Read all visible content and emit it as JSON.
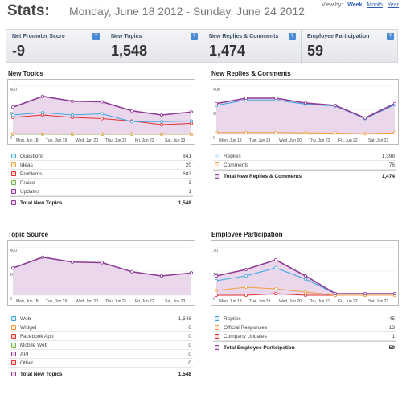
{
  "header": {
    "title": "Stats:",
    "date_range": "Monday, June 18 2012 - Sunday, June 24 2012",
    "view_by_label": "View by:",
    "view_week": "Week",
    "view_month": "Month",
    "view_year": "Year"
  },
  "kpis": [
    {
      "label": "Net Promoter Score",
      "value": "-9"
    },
    {
      "label": "New Topics",
      "value": "1,548"
    },
    {
      "label": "New Replies & Comments",
      "value": "1,474"
    },
    {
      "label": "Employee Participation",
      "value": "59"
    }
  ],
  "help_icon_text": "?",
  "colors": {
    "purple": "#8e3a96",
    "blue": "#3fa8dc",
    "red": "#e03030",
    "orange": "#f0a040",
    "green": "#6fb04a",
    "steel": "#4a78b8",
    "fill": "#ead7ec"
  },
  "sections": {
    "new_topics": {
      "title": "New Topics",
      "legend": [
        {
          "name": "Questions",
          "value": "841",
          "color": "#3fa8dc"
        },
        {
          "name": "Ideas",
          "value": "20",
          "color": "#f0a040"
        },
        {
          "name": "Problems",
          "value": "683",
          "color": "#e03030"
        },
        {
          "name": "Praise",
          "value": "3",
          "color": "#6fb04a"
        },
        {
          "name": "Updates",
          "value": "1",
          "color": "#8e3a96"
        }
      ],
      "total": {
        "name": "Total New Topics",
        "value": "1,548"
      }
    },
    "replies": {
      "title": "New Replies & Comments",
      "legend": [
        {
          "name": "Replies",
          "value": "1,398",
          "color": "#3fa8dc"
        },
        {
          "name": "Comments",
          "value": "76",
          "color": "#f0a040"
        }
      ],
      "total": {
        "name": "Total New Replies & Comments",
        "value": "1,474"
      }
    },
    "topic_source": {
      "title": "Topic Source",
      "legend": [
        {
          "name": "Web",
          "value": "1,548",
          "color": "#3fa8dc"
        },
        {
          "name": "Widget",
          "value": "0",
          "color": "#f0a040"
        },
        {
          "name": "Facebook App",
          "value": "0",
          "color": "#e03030"
        },
        {
          "name": "Mobile Web",
          "value": "0",
          "color": "#6fb04a"
        },
        {
          "name": "API",
          "value": "0",
          "color": "#8e3a96"
        },
        {
          "name": "Other",
          "value": "0",
          "color": "#e03030"
        }
      ],
      "total": {
        "name": "Total New Topics",
        "value": "1,548"
      }
    },
    "employee": {
      "title": "Employee Participation",
      "legend": [
        {
          "name": "Replies",
          "value": "45",
          "color": "#3fa8dc"
        },
        {
          "name": "Official Responses",
          "value": "13",
          "color": "#f0a040"
        },
        {
          "name": "Company Updates",
          "value": "1",
          "color": "#e03030"
        }
      ],
      "total": {
        "name": "Total Employee Participation",
        "value": "59"
      }
    }
  },
  "chart_data": [
    {
      "type": "area",
      "x": [
        "Mon, Jun 18",
        "Tue, Jun 19",
        "Wed, Jun 20",
        "Thu, Jun 21",
        "Fri, Jun 22",
        "Sat, Jun 23",
        "Sun, Jun 24"
      ],
      "x_tick_labels": [
        "Mon, Jun 18",
        "Tue, Jun 19",
        "Wed, Jun 20",
        "Thu, Jun 21",
        "Fri, Jun 22",
        "Sat, Jun 23"
      ],
      "y_ticks": [
        "400",
        "200",
        "0"
      ],
      "ylim": [
        0,
        400
      ],
      "series": [
        {
          "name": "Total New Topics",
          "color": "#8e3a96",
          "values": [
            225,
            315,
            275,
            270,
            195,
            160,
            185
          ]
        },
        {
          "name": "Questions",
          "color": "#3fa8dc",
          "values": [
            160,
            180,
            160,
            170,
            105,
            105,
            110
          ]
        },
        {
          "name": "Problems",
          "color": "#e03030",
          "values": [
            140,
            160,
            140,
            130,
            110,
            80,
            90
          ]
        },
        {
          "name": "Ideas",
          "color": "#f0a040",
          "values": [
            4,
            4,
            3,
            3,
            3,
            2,
            1
          ]
        },
        {
          "name": "Praise",
          "color": "#6fb04a",
          "values": [
            1,
            1,
            0,
            0,
            1,
            0,
            0
          ]
        }
      ]
    },
    {
      "type": "area",
      "x": [
        "Mon, Jun 18",
        "Tue, Jun 19",
        "Wed, Jun 20",
        "Thu, Jun 21",
        "Fri, Jun 22",
        "Sat, Jun 23",
        "Sun, Jun 24"
      ],
      "x_tick_labels": [
        "Mon, Jun 18",
        "Tue, Jun 19",
        "Wed, Jun 20",
        "Thu, Jun 21",
        "Fri, Jun 22",
        "Sat, Jun 23"
      ],
      "y_ticks": [
        "400",
        "200",
        "0"
      ],
      "ylim": [
        0,
        400
      ],
      "series": [
        {
          "name": "Total New Replies & Comments",
          "color": "#8e3a96",
          "values": [
            255,
            300,
            300,
            260,
            240,
            135,
            255
          ]
        },
        {
          "name": "Replies",
          "color": "#3fa8dc",
          "values": [
            240,
            285,
            285,
            250,
            235,
            130,
            245
          ]
        },
        {
          "name": "Comments",
          "color": "#f0a040",
          "values": [
            15,
            15,
            15,
            12,
            10,
            5,
            12
          ]
        }
      ]
    },
    {
      "type": "area",
      "x": [
        "Mon, Jun 18",
        "Tue, Jun 19",
        "Wed, Jun 20",
        "Thu, Jun 21",
        "Fri, Jun 22",
        "Sat, Jun 23",
        "Sun, Jun 24"
      ],
      "x_tick_labels": [
        "Mon, Jun 18",
        "Tue, Jun 19",
        "Wed, Jun 20",
        "Thu, Jun 21",
        "Fri, Jun 22",
        "Sat, Jun 23"
      ],
      "y_ticks": [
        "400",
        "200",
        "0"
      ],
      "ylim": [
        0,
        400
      ],
      "series": [
        {
          "name": "Total New Topics",
          "color": "#8e3a96",
          "values": [
            225,
            315,
            275,
            270,
            195,
            160,
            185
          ]
        },
        {
          "name": "Web",
          "color": "#3fa8dc",
          "values": [
            225,
            315,
            275,
            270,
            195,
            160,
            185
          ]
        }
      ]
    },
    {
      "type": "area",
      "x": [
        "Mon, Jun 18",
        "Tue, Jun 19",
        "Wed, Jun 20",
        "Thu, Jun 21",
        "Fri, Jun 22",
        "Sat, Jun 23",
        "Sun, Jun 24"
      ],
      "x_tick_labels": [
        "Mon, Jun 18",
        "Tue, Jun 19",
        "Wed, Jun 20",
        "Thu, Jun 21",
        "Fri, Jun 22",
        "Sat, Jun 23"
      ],
      "y_ticks": [
        "30",
        "15",
        "0"
      ],
      "ylim": [
        0,
        30
      ],
      "series": [
        {
          "name": "Total Employee Participation",
          "color": "#8e3a96",
          "values": [
            12,
            16,
            22,
            12,
            1,
            1,
            1
          ]
        },
        {
          "name": "Replies",
          "color": "#3fa8dc",
          "values": [
            9,
            12,
            17,
            10,
            1,
            1,
            1
          ]
        },
        {
          "name": "Official Responses",
          "color": "#f0a040",
          "values": [
            3,
            5,
            4,
            2,
            0,
            0,
            0
          ]
        },
        {
          "name": "Company Updates",
          "color": "#e03030",
          "values": [
            0,
            0,
            1,
            0,
            0,
            0,
            0
          ]
        }
      ]
    }
  ]
}
